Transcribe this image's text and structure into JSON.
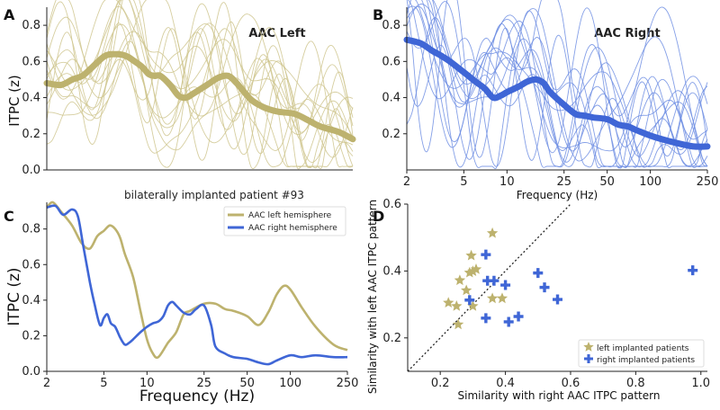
{
  "colors": {
    "left": "#bdb26e",
    "left_thin": "#cfc68e",
    "right": "#3f66d6",
    "right_thin": "#6e8ee3",
    "identity": "#222222"
  },
  "chart_data": [
    {
      "id": "A",
      "type": "line",
      "panel_label": "A",
      "title": "AAC Left",
      "xscale": "log",
      "xlim": [
        2,
        250
      ],
      "ylim": [
        0,
        0.9
      ],
      "yticks": [
        "0.0",
        "0.2",
        "0.4",
        "0.6",
        "0.8"
      ],
      "ylabel": "ITPC (z)",
      "series": [
        {
          "name": "mean",
          "x": [
            2,
            2.5,
            3,
            3.5,
            4,
            5,
            6,
            7,
            8,
            9,
            10,
            11,
            12,
            14,
            16,
            18,
            20,
            25,
            30,
            35,
            40,
            50,
            60,
            70,
            80,
            100,
            120,
            150,
            200,
            250
          ],
          "values": [
            0.48,
            0.47,
            0.5,
            0.52,
            0.56,
            0.63,
            0.64,
            0.63,
            0.6,
            0.57,
            0.53,
            0.52,
            0.52,
            0.47,
            0.41,
            0.4,
            0.42,
            0.47,
            0.51,
            0.52,
            0.48,
            0.39,
            0.35,
            0.33,
            0.32,
            0.31,
            0.28,
            0.24,
            0.21,
            0.17
          ]
        }
      ]
    },
    {
      "id": "B",
      "type": "line",
      "panel_label": "B",
      "title": "AAC Right",
      "xscale": "log",
      "xlim": [
        2,
        250
      ],
      "ylim": [
        0,
        0.9
      ],
      "xticks": [
        "2",
        "5",
        "10",
        "25",
        "50",
        "100",
        "250"
      ],
      "yticks": [
        "0.2",
        "0.4",
        "0.6",
        "0.8"
      ],
      "xlabel": "Frequency (Hz)",
      "series": [
        {
          "name": "mean",
          "x": [
            2,
            2.5,
            3,
            3.5,
            4,
            5,
            6,
            7,
            8,
            9,
            10,
            12,
            14,
            16,
            18,
            20,
            25,
            30,
            35,
            40,
            50,
            60,
            70,
            80,
            100,
            120,
            150,
            200,
            250
          ],
          "values": [
            0.72,
            0.7,
            0.66,
            0.63,
            0.6,
            0.54,
            0.49,
            0.45,
            0.4,
            0.41,
            0.43,
            0.46,
            0.49,
            0.5,
            0.48,
            0.43,
            0.36,
            0.31,
            0.3,
            0.29,
            0.28,
            0.25,
            0.24,
            0.22,
            0.19,
            0.17,
            0.15,
            0.13,
            0.13
          ]
        }
      ]
    },
    {
      "id": "C",
      "type": "line",
      "panel_label": "C",
      "title": "bilaterally implanted patient #93",
      "xscale": "log",
      "xlim": [
        2,
        250
      ],
      "ylim": [
        0,
        0.95
      ],
      "xticks": [
        "2",
        "5",
        "10",
        "25",
        "50",
        "100",
        "250"
      ],
      "yticks": [
        "0.0",
        "0.2",
        "0.4",
        "0.6",
        "0.8"
      ],
      "xlabel": "Frequency (Hz)",
      "ylabel": "ITPC (z)",
      "legend": [
        "AAC left hemisphere",
        "AAC right hemisphere"
      ],
      "legend_position": "top-right",
      "series": [
        {
          "name": "AAC left hemisphere",
          "x": [
            2,
            2.2,
            2.5,
            3,
            3.5,
            4,
            4.5,
            5,
            5.5,
            6,
            6.5,
            7,
            8,
            9,
            10,
            11,
            12,
            14,
            16,
            18,
            20,
            25,
            30,
            35,
            40,
            50,
            60,
            70,
            80,
            90,
            100,
            120,
            150,
            200,
            250
          ],
          "values": [
            0.92,
            0.95,
            0.9,
            0.82,
            0.72,
            0.69,
            0.76,
            0.79,
            0.82,
            0.8,
            0.75,
            0.66,
            0.53,
            0.34,
            0.18,
            0.1,
            0.08,
            0.16,
            0.22,
            0.32,
            0.34,
            0.38,
            0.38,
            0.35,
            0.34,
            0.31,
            0.26,
            0.33,
            0.43,
            0.48,
            0.46,
            0.36,
            0.25,
            0.15,
            0.12
          ]
        },
        {
          "name": "AAC right hemisphere",
          "x": [
            2,
            2.3,
            2.6,
            3,
            3.3,
            3.6,
            4,
            4.3,
            4.7,
            5,
            5.3,
            5.6,
            6,
            6.5,
            7,
            7.5,
            8,
            9,
            10,
            11,
            12,
            13,
            14,
            15,
            16,
            18,
            20,
            22,
            25,
            28,
            30,
            35,
            40,
            50,
            60,
            70,
            80,
            100,
            120,
            150,
            200,
            250
          ],
          "values": [
            0.92,
            0.93,
            0.88,
            0.91,
            0.87,
            0.7,
            0.5,
            0.38,
            0.26,
            0.3,
            0.32,
            0.27,
            0.25,
            0.19,
            0.15,
            0.16,
            0.18,
            0.22,
            0.25,
            0.27,
            0.28,
            0.31,
            0.37,
            0.39,
            0.37,
            0.33,
            0.32,
            0.35,
            0.37,
            0.26,
            0.14,
            0.1,
            0.08,
            0.07,
            0.05,
            0.04,
            0.06,
            0.09,
            0.08,
            0.09,
            0.08,
            0.08
          ]
        }
      ]
    },
    {
      "id": "D",
      "type": "scatter",
      "panel_label": "D",
      "xlim": [
        0.1,
        1.02
      ],
      "ylim": [
        0.1,
        0.6
      ],
      "xticks": [
        "0.2",
        "0.4",
        "0.6",
        "0.8",
        "1.0"
      ],
      "yticks": [
        "0.2",
        "0.4",
        "0.6"
      ],
      "xlabel": "Similarity with right AAC ITPC pattern",
      "ylabel": "Similarity with left AAC ITPC pattern",
      "legend": [
        "left implanted patients",
        "right implanted patients"
      ],
      "legend_position": "bottom-right",
      "series": [
        {
          "name": "left implanted patients",
          "marker": "star",
          "x": [
            0.36,
            0.295,
            0.31,
            0.3,
            0.29,
            0.26,
            0.28,
            0.225,
            0.25,
            0.3,
            0.36,
            0.39,
            0.255
          ],
          "y": [
            0.513,
            0.446,
            0.405,
            0.399,
            0.395,
            0.372,
            0.342,
            0.305,
            0.295,
            0.295,
            0.318,
            0.318,
            0.24
          ]
        },
        {
          "name": "right implanted patients",
          "marker": "plus",
          "x": [
            0.34,
            0.345,
            0.365,
            0.5,
            0.52,
            0.4,
            0.56,
            0.29,
            0.34,
            0.44,
            0.41,
            0.975
          ],
          "y": [
            0.449,
            0.371,
            0.371,
            0.394,
            0.351,
            0.358,
            0.315,
            0.313,
            0.259,
            0.264,
            0.248,
            0.402
          ]
        }
      ]
    }
  ]
}
